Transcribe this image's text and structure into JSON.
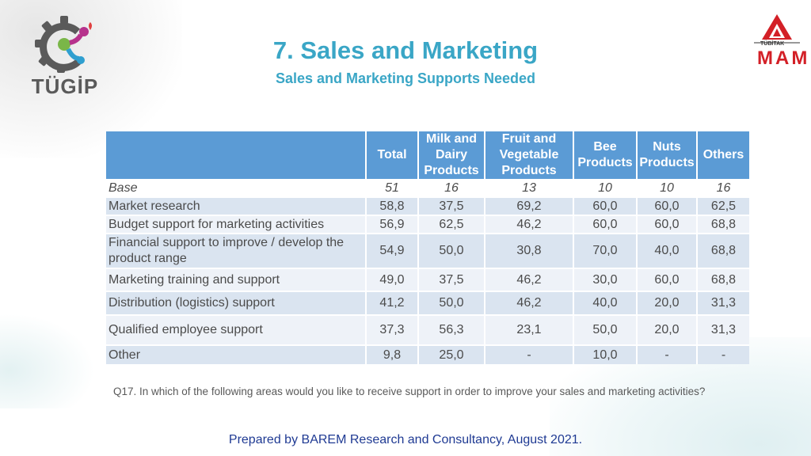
{
  "title": "7. Sales and Marketing",
  "subtitle": "Sales and Marketing Supports Needed",
  "logos": {
    "left_text": "TÜGİP",
    "right_small": "TÜBİTAK",
    "right_main": "MAM"
  },
  "table": {
    "headers": [
      "",
      "Total",
      "Milk and Dairy Products",
      "Fruit and Vegetable Products",
      "Bee Products",
      "Nuts Products",
      "Others"
    ],
    "base": {
      "label": "Base",
      "values": [
        "51",
        "16",
        "13",
        "10",
        "10",
        "16"
      ]
    },
    "rows": [
      {
        "label": "Market research",
        "values": [
          "58,8",
          "37,5",
          "69,2",
          "60,0",
          "60,0",
          "62,5"
        ]
      },
      {
        "label": "Budget support for marketing activities",
        "values": [
          "56,9",
          "62,5",
          "46,2",
          "60,0",
          "60,0",
          "68,8"
        ]
      },
      {
        "label": "Financial support to improve / develop the product range",
        "values": [
          "54,9",
          "50,0",
          "30,8",
          "70,0",
          "40,0",
          "68,8"
        ]
      },
      {
        "label": "Marketing training and support",
        "values": [
          "49,0",
          "37,5",
          "46,2",
          "30,0",
          "60,0",
          "68,8"
        ]
      },
      {
        "label": "Distribution (logistics) support",
        "values": [
          "41,2",
          "50,0",
          "46,2",
          "40,0",
          "20,0",
          "31,3"
        ]
      },
      {
        "label": "Qualified employee support",
        "values": [
          "37,3",
          "56,3",
          "23,1",
          "50,0",
          "20,0",
          "31,3"
        ]
      },
      {
        "label": "Other",
        "values": [
          "9,8",
          "25,0",
          "-",
          "10,0",
          "-",
          "-"
        ]
      }
    ]
  },
  "question": "Q17. In which of the following areas would you like to receive support in order to improve your sales and marketing activities?",
  "footer": "Prepared by BAREM Research and Consultancy, August 2021.",
  "colors": {
    "title": "#3aa6c6",
    "header_bg": "#5b9bd5",
    "row_dark": "#dae4f0",
    "row_light": "#eef2f8",
    "footer": "#1f3a93",
    "logo_red": "#d32027"
  }
}
